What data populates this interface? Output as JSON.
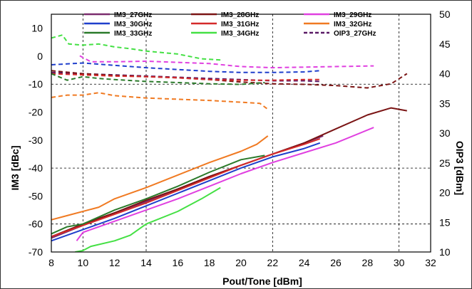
{
  "chart_data": {
    "type": "line",
    "xlabel": "Pout/Tone [dBm]",
    "ylabel": "IM3 [dBc]",
    "y2label": "OIP3 [dBm]",
    "xlim": [
      8,
      32
    ],
    "ylim": [
      -70,
      15
    ],
    "y2lim": [
      10,
      50
    ],
    "x_ticks": [
      8,
      10,
      12,
      14,
      16,
      18,
      20,
      22,
      24,
      26,
      28,
      30,
      32
    ],
    "y_ticks": [
      -70,
      -60,
      -50,
      -40,
      -30,
      -20,
      -10,
      0,
      10
    ],
    "y2_ticks": [
      10,
      15,
      20,
      25,
      30,
      35,
      40,
      45,
      50
    ],
    "grid": "major dashed",
    "legend_position": "top",
    "legend": [
      {
        "label": "IM3_27GHz",
        "color": "#7b2c6e",
        "dash": false
      },
      {
        "label": "IM3_28GHz",
        "color": "#7a1414",
        "dash": false
      },
      {
        "label": "IM3_29GHz",
        "color": "#e040e0",
        "dash": false
      },
      {
        "label": "IM3_30GHz",
        "color": "#1f3fcc",
        "dash": false
      },
      {
        "label": "IM3_31GHz",
        "color": "#d42a2a",
        "dash": false
      },
      {
        "label": "IM3_32GHz",
        "color": "#f07a22",
        "dash": false
      },
      {
        "label": "IM3_33GHz",
        "color": "#2a7a2a",
        "dash": false
      },
      {
        "label": "IM3_34GHz",
        "color": "#44e044",
        "dash": false
      },
      {
        "label": "OIP3_27GHz",
        "color": "#5a1a66",
        "dash": true
      }
    ],
    "series": [
      {
        "id": "im3_27",
        "axis": "left",
        "color": "#7b2c6e",
        "dash": false,
        "x": [
          8,
          10,
          12,
          14,
          16,
          18,
          20,
          22,
          24,
          25.2
        ],
        "y": [
          -65,
          -60.5,
          -56,
          -52,
          -47.5,
          -43,
          -39,
          -35,
          -31,
          -28.5
        ]
      },
      {
        "id": "im3_28",
        "axis": "left",
        "color": "#7a1414",
        "dash": false,
        "x": [
          8,
          10,
          12,
          14,
          16,
          18,
          20,
          22,
          24,
          26,
          28,
          29.5,
          30.5
        ],
        "y": [
          -64.5,
          -60,
          -56,
          -51.5,
          -47.5,
          -43,
          -39,
          -35,
          -31,
          -26,
          -21,
          -18.5,
          -19.5
        ]
      },
      {
        "id": "im3_29",
        "axis": "left",
        "color": "#e040e0",
        "dash": false,
        "x": [
          9.6,
          10,
          12,
          14,
          16,
          18,
          20,
          22,
          24,
          26,
          28.4
        ],
        "y": [
          -66,
          -63,
          -59,
          -55,
          -51,
          -46.5,
          -42,
          -38,
          -34.5,
          -31,
          -25.5
        ]
      },
      {
        "id": "im3_30",
        "axis": "left",
        "color": "#1f3fcc",
        "dash": false,
        "x": [
          8,
          10,
          12,
          14,
          16,
          18,
          20,
          22,
          24,
          25
        ],
        "y": [
          -66,
          -62,
          -58,
          -53.5,
          -49,
          -44.5,
          -40,
          -36,
          -33,
          -31
        ]
      },
      {
        "id": "im3_31",
        "axis": "left",
        "color": "#d42a2a",
        "dash": false,
        "x": [
          8,
          10,
          12,
          14,
          16,
          18,
          20,
          22,
          24,
          25
        ],
        "y": [
          -64.5,
          -60.5,
          -56.5,
          -52.5,
          -48,
          -43.5,
          -39,
          -35,
          -31.5,
          -29.5
        ]
      },
      {
        "id": "im3_32",
        "axis": "left",
        "color": "#f07a22",
        "dash": false,
        "x": [
          8,
          9,
          11,
          12,
          14,
          16,
          18,
          20,
          21,
          21.7
        ],
        "y": [
          -58.5,
          -57,
          -54,
          -51,
          -47,
          -42.5,
          -38,
          -34,
          -31.5,
          -28.5
        ]
      },
      {
        "id": "im3_33",
        "axis": "left",
        "color": "#2a7a2a",
        "dash": false,
        "x": [
          8,
          9,
          10,
          12,
          14,
          16,
          18,
          20,
          21.5
        ],
        "y": [
          -63.5,
          -61,
          -60,
          -55,
          -51,
          -46.5,
          -41.5,
          -37,
          -35.5
        ]
      },
      {
        "id": "im3_34",
        "axis": "left",
        "color": "#44e044",
        "dash": false,
        "x": [
          9.5,
          10,
          10.5,
          12,
          13,
          14,
          16,
          17.5,
          18.7
        ],
        "y": [
          -70,
          -69.5,
          -68,
          -66,
          -64,
          -60,
          -55.5,
          -51,
          -47
        ]
      },
      {
        "id": "oip3_27",
        "axis": "right",
        "color": "#5a1a66",
        "dash": true,
        "x": [
          8,
          10,
          12,
          14,
          16,
          18,
          20,
          22,
          24,
          25
        ],
        "y": [
          40.2,
          40.0,
          39.8,
          39.6,
          39.4,
          39.2,
          39.0,
          38.8,
          38.8,
          38.7
        ]
      },
      {
        "id": "oip3_28",
        "axis": "right",
        "color": "#7a1414",
        "dash": true,
        "x": [
          8,
          10,
          12,
          14,
          16,
          18,
          20,
          22,
          24,
          26,
          28,
          29.5,
          30.5
        ],
        "y": [
          40.5,
          40.0,
          39.7,
          39.5,
          39.3,
          39.0,
          38.6,
          38.3,
          38.2,
          38.0,
          37.6,
          38.3,
          40.0
        ]
      },
      {
        "id": "oip3_29",
        "axis": "right",
        "color": "#e040e0",
        "dash": true,
        "x": [
          9.8,
          10.5,
          12,
          14,
          16,
          18,
          20,
          22,
          24,
          26,
          28.4
        ],
        "y": [
          43.0,
          42.0,
          42.0,
          42.1,
          41.9,
          41.7,
          41.2,
          41.0,
          41.1,
          41.2,
          41.3
        ]
      },
      {
        "id": "oip3_30",
        "axis": "right",
        "color": "#1f3fcc",
        "dash": true,
        "x": [
          8,
          10,
          12,
          14,
          16,
          18,
          20,
          22,
          24,
          25
        ],
        "y": [
          41.5,
          41.8,
          41.4,
          41.0,
          40.7,
          40.4,
          40.2,
          40.2,
          40.3,
          40.5
        ]
      },
      {
        "id": "oip3_31",
        "axis": "right",
        "color": "#d42a2a",
        "dash": true,
        "x": [
          8,
          10,
          12,
          14,
          16,
          18,
          20,
          22,
          24,
          25
        ],
        "y": [
          40.0,
          39.8,
          39.6,
          39.5,
          39.3,
          39.0,
          38.9,
          38.9,
          39.0,
          39.0
        ]
      },
      {
        "id": "oip3_32",
        "axis": "right",
        "color": "#f07a22",
        "dash": true,
        "x": [
          8,
          9,
          10,
          11,
          12,
          14,
          16,
          18,
          20,
          21.2,
          21.7
        ],
        "y": [
          36.0,
          36.4,
          36.4,
          36.8,
          36.3,
          35.9,
          35.7,
          35.5,
          35.2,
          35.0,
          34.0
        ]
      },
      {
        "id": "oip3_33",
        "axis": "right",
        "color": "#2a7a2a",
        "dash": true,
        "x": [
          8,
          9,
          10,
          11,
          12,
          14,
          16,
          18,
          20,
          21.5
        ],
        "y": [
          40.0,
          38.9,
          39.5,
          39.2,
          39.0,
          38.7,
          38.5,
          38.3,
          38.2,
          38.5
        ]
      },
      {
        "id": "oip3_34",
        "axis": "right",
        "color": "#44e044",
        "dash": true,
        "x": [
          8,
          8.7,
          9.1,
          10,
          11,
          12,
          13,
          14,
          16,
          17.5,
          18.7
        ],
        "y": [
          46.0,
          46.5,
          45.0,
          44.8,
          45.0,
          44.5,
          44.2,
          43.8,
          43.3,
          42.5,
          42.3
        ]
      }
    ]
  }
}
